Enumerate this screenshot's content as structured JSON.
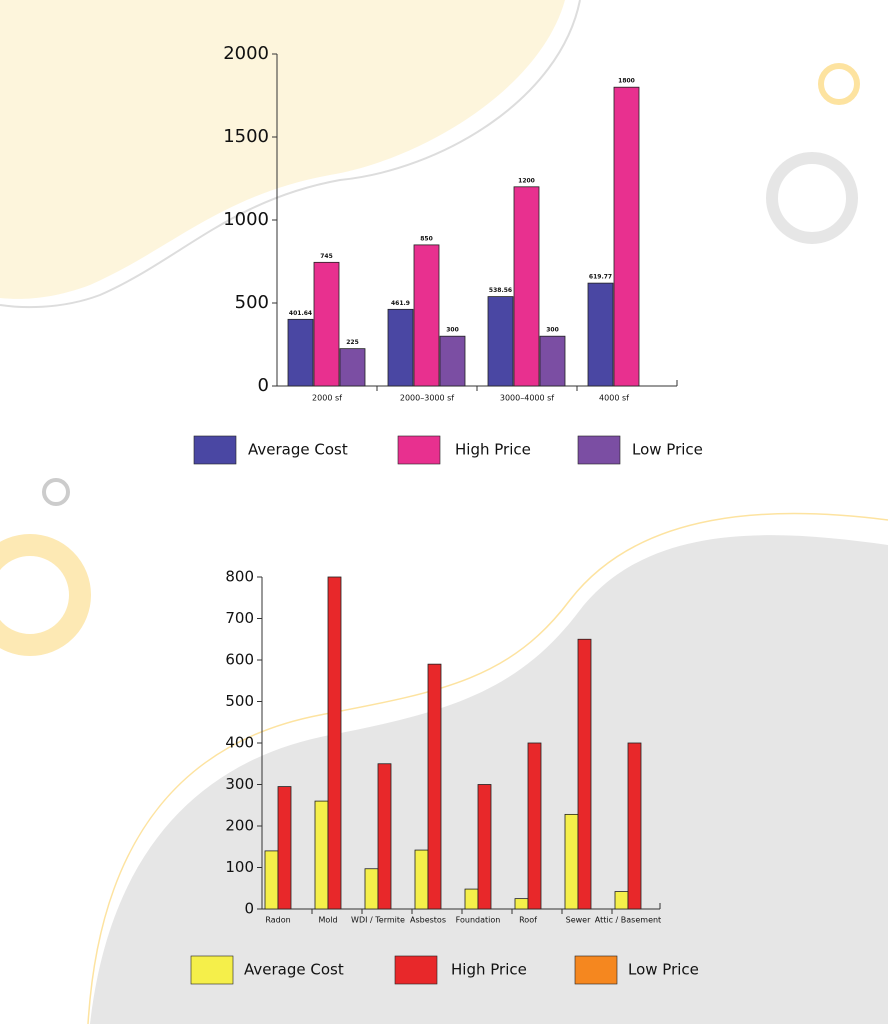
{
  "chart_data": [
    {
      "type": "bar",
      "categories": [
        "2000 sf",
        "2000–3000 sf",
        "3000–4000 sf",
        "4000 sf"
      ],
      "series": [
        {
          "name": "Average Cost",
          "color": "#4a47a3",
          "values": [
            401.64,
            461.9,
            538.56,
            619.77
          ]
        },
        {
          "name": "High Price",
          "color": "#e8308f",
          "values": [
            745,
            850,
            1200,
            1800
          ]
        },
        {
          "name": "Low Price",
          "color": "#7b4ea3",
          "values": [
            225,
            300,
            300,
            null
          ]
        }
      ],
      "ylim": [
        0,
        2000
      ],
      "yticks": [
        0,
        500,
        1000,
        1500,
        2000
      ],
      "data_labels": true
    },
    {
      "type": "bar",
      "categories": [
        "Radon",
        "Mold",
        "WDI / Termite",
        "Asbestos",
        "Foundation",
        "Roof",
        "Sewer",
        "Attic / Basement"
      ],
      "series": [
        {
          "name": "Average Cost",
          "color": "#f5ef4a",
          "values": [
            140,
            260,
            97,
            142,
            48,
            25,
            228,
            42
          ]
        },
        {
          "name": "High Price",
          "color": "#e8282a",
          "values": [
            295,
            800,
            350,
            590,
            300,
            400,
            650,
            400
          ]
        },
        {
          "name": "Low Price",
          "color": "#f5871f",
          "values": [
            null,
            null,
            null,
            null,
            null,
            null,
            null,
            null
          ]
        }
      ],
      "ylim": [
        0,
        800
      ],
      "yticks": [
        0,
        100,
        200,
        300,
        400,
        500,
        600,
        700,
        800
      ],
      "data_labels": false
    }
  ]
}
